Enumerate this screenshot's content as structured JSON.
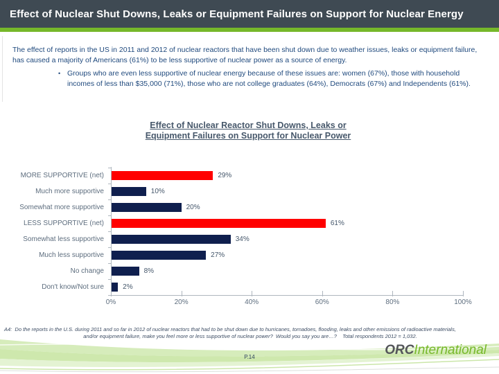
{
  "header": {
    "title": "Effect of Nuclear Shut Downs, Leaks or Equipment Failures on Support for Nuclear Energy"
  },
  "intro": {
    "paragraph": "The effect of reports in the US in 2011 and 2012 of nuclear reactors that have been shut down due to weather issues, leaks or equipment failure, has caused a majority of Americans (61%) to be less supportive of nuclear  power as a source of energy.",
    "bullet_glyph": "•",
    "bullet": "Groups who are even less supportive of nuclear energy because of these issues are:  women (67%), those with household incomes of less than $35,000 (71%), those who are not college graduates (64%), Democrats (67%) and Independents (61%)."
  },
  "chart_data": {
    "type": "bar",
    "orientation": "horizontal",
    "title": "Effect of Nuclear Reactor Shut Downs, Leaks or Equipment Failures on Support for Nuclear Power",
    "title_line1": "Effect of Nuclear Reactor Shut Downs, Leaks or",
    "title_line2": "Equipment Failures on Support for Nuclear Power",
    "categories": [
      "MORE SUPPORTIVE (net)",
      "Much more supportive",
      "Somewhat more supportive",
      "LESS SUPPORTIVE (net)",
      "Somewhat less supportive",
      "Much less supportive",
      "No change",
      "Don't know/Not sure"
    ],
    "values": [
      29,
      10,
      20,
      61,
      34,
      27,
      8,
      2
    ],
    "value_labels": [
      "29%",
      "10%",
      "20%",
      "61%",
      "34%",
      "27%",
      "8%",
      "2%"
    ],
    "bar_styles": [
      "net",
      "sub",
      "sub",
      "net",
      "sub",
      "sub",
      "sub",
      "sub"
    ],
    "series_colors": {
      "net": "#FF0000",
      "sub": "#0F1F4E"
    },
    "xlim": [
      0,
      100
    ],
    "x_ticks": [
      "0%",
      "20%",
      "40%",
      "60%",
      "80%",
      "100%"
    ],
    "grid": "off",
    "legend": "none"
  },
  "footnote": {
    "line1": "A4:  Do the reports in the U.S. during 2011 and so far in 2012 of nuclear reactors that had to be shut down due to hurricanes, tornadoes, flooding, leaks and other emissions of radioactive materials,",
    "line2": "and/or equipment failure, make you feel more or less supportive of nuclear power?  Would you say you are…?    Total respondents 2012 = 1,032."
  },
  "footer": {
    "page": "P.14",
    "logo_orc": "ORC",
    "logo_international": "International"
  },
  "colors": {
    "header_bg": "#3F4A53",
    "accent_green": "#76B82A",
    "body_text": "#1F497D",
    "axis": "#AEB6BE"
  }
}
